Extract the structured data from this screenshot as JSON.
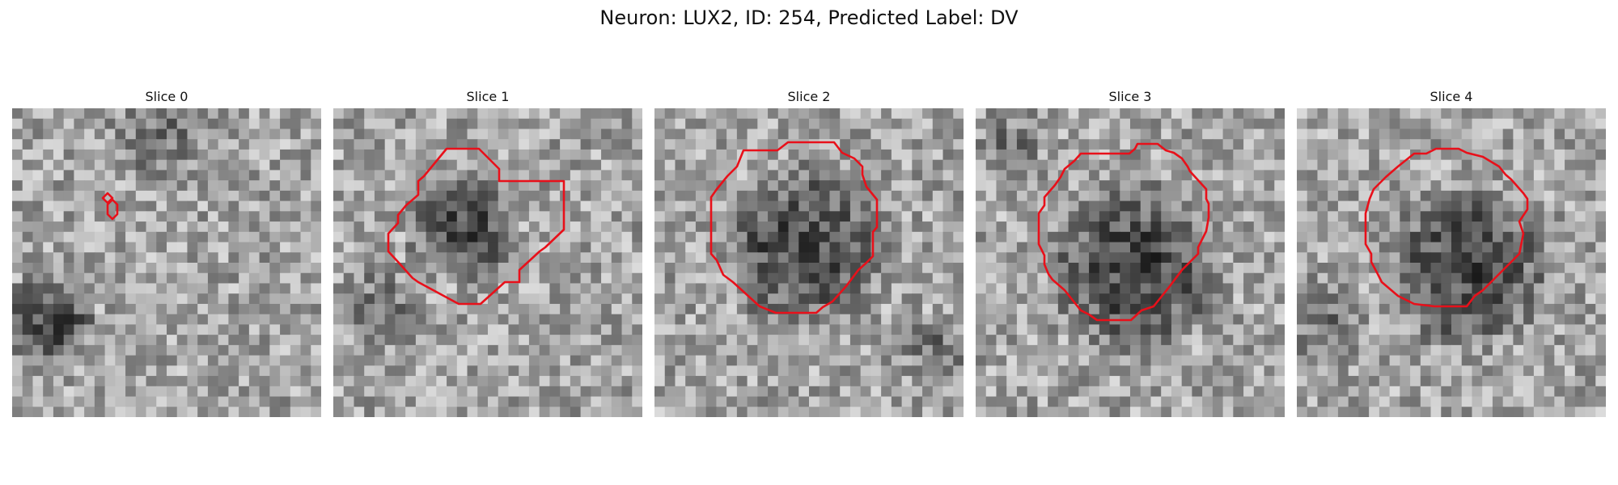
{
  "figure": {
    "title": "Neuron: LUX2, ID: 254, Predicted Label: DV"
  },
  "panels": [
    {
      "title": "Slice 0"
    },
    {
      "title": "Slice 1"
    },
    {
      "title": "Slice 2"
    },
    {
      "title": "Slice 3"
    },
    {
      "title": "Slice 4"
    }
  ],
  "colors": {
    "contour": "#e8101a",
    "background": "#ffffff"
  }
}
